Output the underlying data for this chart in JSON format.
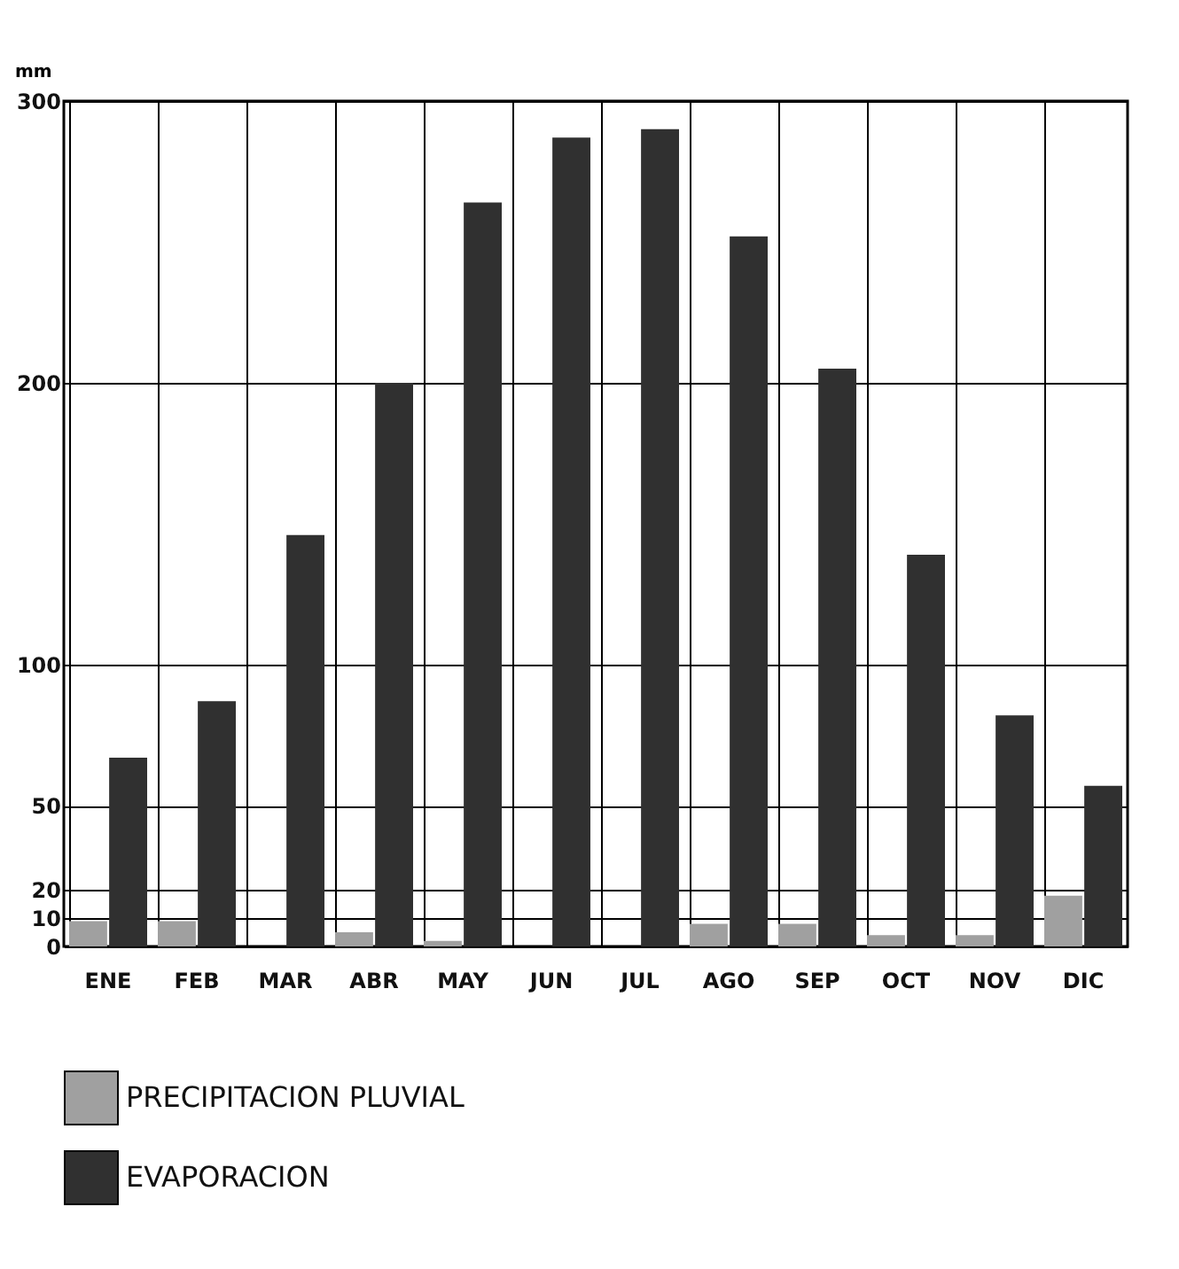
{
  "chart_data": {
    "type": "bar",
    "ylabel": "mm",
    "categories": [
      "ENE",
      "FEB",
      "MAR",
      "ABR",
      "MAY",
      "JUN",
      "JUL",
      "AGO",
      "SEP",
      "OCT",
      "NOV",
      "DIC"
    ],
    "series": [
      {
        "name": "PRECIPITACION  PLUVIAL",
        "color": "#a0a0a0",
        "values": [
          9,
          9,
          0,
          5,
          2,
          0,
          0,
          8,
          8,
          4,
          4,
          18
        ]
      },
      {
        "name": "EVAPORACION",
        "color": "#303030",
        "values": [
          67,
          87,
          146,
          200,
          264,
          287,
          290,
          252,
          205,
          139,
          82,
          57
        ]
      }
    ],
    "ylim": [
      0,
      300
    ],
    "yticks": [
      0,
      10,
      20,
      50,
      100,
      200,
      300
    ],
    "grid": true,
    "legend": "bottom"
  }
}
